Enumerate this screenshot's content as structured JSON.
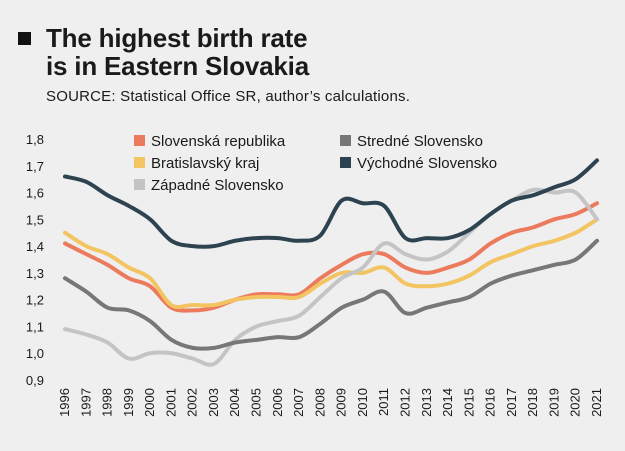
{
  "header": {
    "title_line1": "The highest birth rate",
    "title_line2": "is in Eastern Slovakia",
    "source": "SOURCE: Statistical Office SR, author’s calculations."
  },
  "chart_data": {
    "type": "line",
    "title": "The highest birth rate is in Eastern Slovakia",
    "xlabel": "",
    "ylabel": "",
    "x": [
      1996,
      1997,
      1998,
      1999,
      2000,
      2001,
      2002,
      2003,
      2004,
      2005,
      2006,
      2007,
      2008,
      2009,
      2010,
      2011,
      2012,
      2013,
      2014,
      2015,
      2016,
      2017,
      2018,
      2019,
      2020,
      2021
    ],
    "ylim": [
      0.9,
      1.8
    ],
    "yticks": [
      "0,9",
      "1,0",
      "1,1",
      "1,2",
      "1,3",
      "1,4",
      "1,5",
      "1,6",
      "1,7",
      "1,8"
    ],
    "grid": false,
    "legend_position": "top",
    "series": [
      {
        "name": "Slovenská republika",
        "color": "#ec7a5c",
        "values": [
          1.41,
          1.37,
          1.33,
          1.28,
          1.25,
          1.17,
          1.16,
          1.17,
          1.2,
          1.22,
          1.22,
          1.22,
          1.28,
          1.33,
          1.37,
          1.37,
          1.32,
          1.3,
          1.32,
          1.35,
          1.41,
          1.45,
          1.47,
          1.5,
          1.52,
          1.56
        ]
      },
      {
        "name": "Bratislavský kraj",
        "color": "#f2c462",
        "values": [
          1.45,
          1.4,
          1.37,
          1.32,
          1.28,
          1.18,
          1.18,
          1.18,
          1.2,
          1.21,
          1.21,
          1.21,
          1.26,
          1.3,
          1.3,
          1.32,
          1.26,
          1.25,
          1.26,
          1.29,
          1.34,
          1.37,
          1.4,
          1.42,
          1.45,
          1.5
        ]
      },
      {
        "name": "Západné Slovensko",
        "color": "#c4c4c4",
        "values": [
          1.09,
          1.07,
          1.04,
          0.98,
          1.0,
          1.0,
          0.98,
          0.96,
          1.05,
          1.1,
          1.12,
          1.14,
          1.21,
          1.28,
          1.32,
          1.41,
          1.37,
          1.35,
          1.38,
          1.45,
          1.52,
          1.57,
          1.61,
          1.6,
          1.6,
          1.5
        ]
      },
      {
        "name": "Stredné Slovensko",
        "color": "#777777",
        "values": [
          1.28,
          1.23,
          1.17,
          1.16,
          1.12,
          1.05,
          1.02,
          1.02,
          1.04,
          1.05,
          1.06,
          1.06,
          1.11,
          1.17,
          1.2,
          1.23,
          1.15,
          1.17,
          1.19,
          1.21,
          1.26,
          1.29,
          1.31,
          1.33,
          1.35,
          1.42
        ]
      },
      {
        "name": "Východné Slovensko",
        "color": "#2d4350",
        "values": [
          1.66,
          1.64,
          1.59,
          1.55,
          1.5,
          1.42,
          1.4,
          1.4,
          1.42,
          1.43,
          1.43,
          1.42,
          1.44,
          1.57,
          1.56,
          1.55,
          1.43,
          1.43,
          1.43,
          1.46,
          1.52,
          1.57,
          1.59,
          1.62,
          1.65,
          1.72
        ]
      }
    ]
  }
}
